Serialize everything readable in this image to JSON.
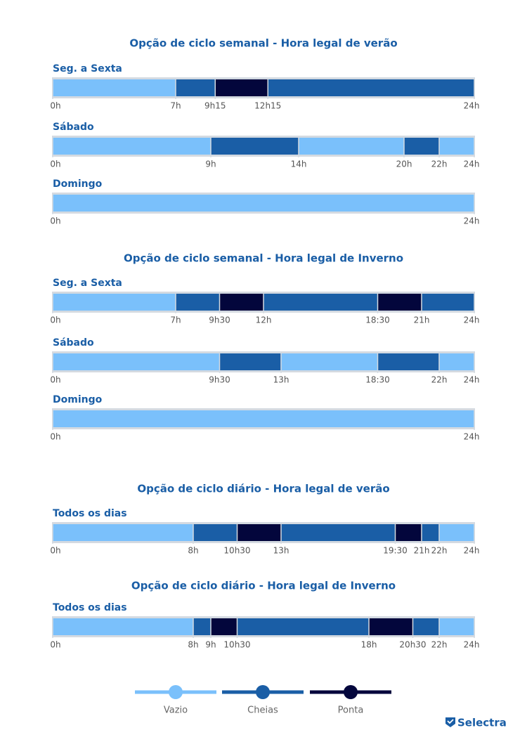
{
  "colors": {
    "vazio": "#7ac0fb",
    "cheias": "#1a5ea6",
    "ponta": "#03063c",
    "frame": "#d4dae1",
    "title": "#1a5ea6"
  },
  "logo": {
    "text": "Selectra",
    "icon": "check-shield-icon"
  },
  "chart_data": [
    {
      "type": "timeline",
      "title": "Opção de ciclo semanal - Hora legal de verão",
      "xlim": [
        0,
        24
      ],
      "rows": [
        {
          "label": "Seg. a Sexta",
          "ticks": [
            {
              "v": 0,
              "t": "0h"
            },
            {
              "v": 7,
              "t": "7h"
            },
            {
              "v": 9.25,
              "t": "9h15"
            },
            {
              "v": 12.25,
              "t": "12h15"
            },
            {
              "v": 24,
              "t": "24h"
            }
          ],
          "segments": [
            {
              "from": 0,
              "to": 7,
              "p": "vazio"
            },
            {
              "from": 7,
              "to": 9.25,
              "p": "cheias"
            },
            {
              "from": 9.25,
              "to": 12.25,
              "p": "ponta"
            },
            {
              "from": 12.25,
              "to": 24,
              "p": "cheias"
            }
          ]
        },
        {
          "label": "Sábado",
          "ticks": [
            {
              "v": 0,
              "t": "0h"
            },
            {
              "v": 9,
              "t": "9h"
            },
            {
              "v": 14,
              "t": "14h"
            },
            {
              "v": 20,
              "t": "20h"
            },
            {
              "v": 22,
              "t": "22h"
            },
            {
              "v": 24,
              "t": "24h"
            }
          ],
          "segments": [
            {
              "from": 0,
              "to": 9,
              "p": "vazio"
            },
            {
              "from": 9,
              "to": 14,
              "p": "cheias"
            },
            {
              "from": 14,
              "to": 20,
              "p": "vazio"
            },
            {
              "from": 20,
              "to": 22,
              "p": "cheias"
            },
            {
              "from": 22,
              "to": 24,
              "p": "vazio"
            }
          ]
        },
        {
          "label": "Domingo",
          "ticks": [
            {
              "v": 0,
              "t": "0h"
            },
            {
              "v": 24,
              "t": "24h"
            }
          ],
          "segments": [
            {
              "from": 0,
              "to": 24,
              "p": "vazio"
            }
          ]
        }
      ]
    },
    {
      "type": "timeline",
      "title": "Opção de ciclo semanal - Hora legal de Inverno",
      "xlim": [
        0,
        24
      ],
      "rows": [
        {
          "label": "Seg. a Sexta",
          "ticks": [
            {
              "v": 0,
              "t": "0h"
            },
            {
              "v": 7,
              "t": "7h"
            },
            {
              "v": 9.5,
              "t": "9h30"
            },
            {
              "v": 12,
              "t": "12h"
            },
            {
              "v": 18.5,
              "t": "18:30"
            },
            {
              "v": 21,
              "t": "21h"
            },
            {
              "v": 24,
              "t": "24h"
            }
          ],
          "segments": [
            {
              "from": 0,
              "to": 7,
              "p": "vazio"
            },
            {
              "from": 7,
              "to": 9.5,
              "p": "cheias"
            },
            {
              "from": 9.5,
              "to": 12,
              "p": "ponta"
            },
            {
              "from": 12,
              "to": 18.5,
              "p": "cheias"
            },
            {
              "from": 18.5,
              "to": 21,
              "p": "ponta"
            },
            {
              "from": 21,
              "to": 24,
              "p": "cheias"
            }
          ]
        },
        {
          "label": "Sábado",
          "ticks": [
            {
              "v": 0,
              "t": "0h"
            },
            {
              "v": 9.5,
              "t": "9h30"
            },
            {
              "v": 13,
              "t": "13h"
            },
            {
              "v": 18.5,
              "t": "18:30"
            },
            {
              "v": 22,
              "t": "22h"
            },
            {
              "v": 24,
              "t": "24h"
            }
          ],
          "segments": [
            {
              "from": 0,
              "to": 9.5,
              "p": "vazio"
            },
            {
              "from": 9.5,
              "to": 13,
              "p": "cheias"
            },
            {
              "from": 13,
              "to": 18.5,
              "p": "vazio"
            },
            {
              "from": 18.5,
              "to": 22,
              "p": "cheias"
            },
            {
              "from": 22,
              "to": 24,
              "p": "vazio"
            }
          ]
        },
        {
          "label": "Domingo",
          "ticks": [
            {
              "v": 0,
              "t": "0h"
            },
            {
              "v": 24,
              "t": "24h"
            }
          ],
          "segments": [
            {
              "from": 0,
              "to": 24,
              "p": "vazio"
            }
          ]
        }
      ]
    },
    {
      "type": "timeline",
      "title": "Opção de ciclo diário - Hora legal de verão",
      "xlim": [
        0,
        24
      ],
      "rows": [
        {
          "label": "Todos os dias",
          "ticks": [
            {
              "v": 0,
              "t": "0h"
            },
            {
              "v": 8,
              "t": "8h"
            },
            {
              "v": 10.5,
              "t": "10h30"
            },
            {
              "v": 13,
              "t": "13h"
            },
            {
              "v": 19.5,
              "t": "19:30"
            },
            {
              "v": 21,
              "t": "21h"
            },
            {
              "v": 22,
              "t": "22h"
            },
            {
              "v": 24,
              "t": "24h"
            }
          ],
          "segments": [
            {
              "from": 0,
              "to": 8,
              "p": "vazio"
            },
            {
              "from": 8,
              "to": 10.5,
              "p": "cheias"
            },
            {
              "from": 10.5,
              "to": 13,
              "p": "ponta"
            },
            {
              "from": 13,
              "to": 19.5,
              "p": "cheias"
            },
            {
              "from": 19.5,
              "to": 21,
              "p": "ponta"
            },
            {
              "from": 21,
              "to": 22,
              "p": "cheias"
            },
            {
              "from": 22,
              "to": 24,
              "p": "vazio"
            }
          ]
        }
      ]
    },
    {
      "type": "timeline",
      "title": "Opção de ciclo diário - Hora legal de Inverno",
      "xlim": [
        0,
        24
      ],
      "rows": [
        {
          "label": "Todos os dias",
          "ticks": [
            {
              "v": 0,
              "t": "0h"
            },
            {
              "v": 8,
              "t": "8h"
            },
            {
              "v": 9,
              "t": "9h"
            },
            {
              "v": 10.5,
              "t": "10h30"
            },
            {
              "v": 18,
              "t": "18h"
            },
            {
              "v": 20.5,
              "t": "20h30"
            },
            {
              "v": 22,
              "t": "22h"
            },
            {
              "v": 24,
              "t": "24h"
            }
          ],
          "segments": [
            {
              "from": 0,
              "to": 8,
              "p": "vazio"
            },
            {
              "from": 8,
              "to": 9,
              "p": "cheias"
            },
            {
              "from": 9,
              "to": 10.5,
              "p": "ponta"
            },
            {
              "from": 10.5,
              "to": 18,
              "p": "cheias"
            },
            {
              "from": 18,
              "to": 20.5,
              "p": "ponta"
            },
            {
              "from": 20.5,
              "to": 22,
              "p": "cheias"
            },
            {
              "from": 22,
              "to": 24,
              "p": "vazio"
            }
          ]
        }
      ]
    }
  ],
  "legend": [
    {
      "key": "vazio",
      "label": "Vazio"
    },
    {
      "key": "cheias",
      "label": "Cheias"
    },
    {
      "key": "ponta",
      "label": "Ponta"
    }
  ]
}
